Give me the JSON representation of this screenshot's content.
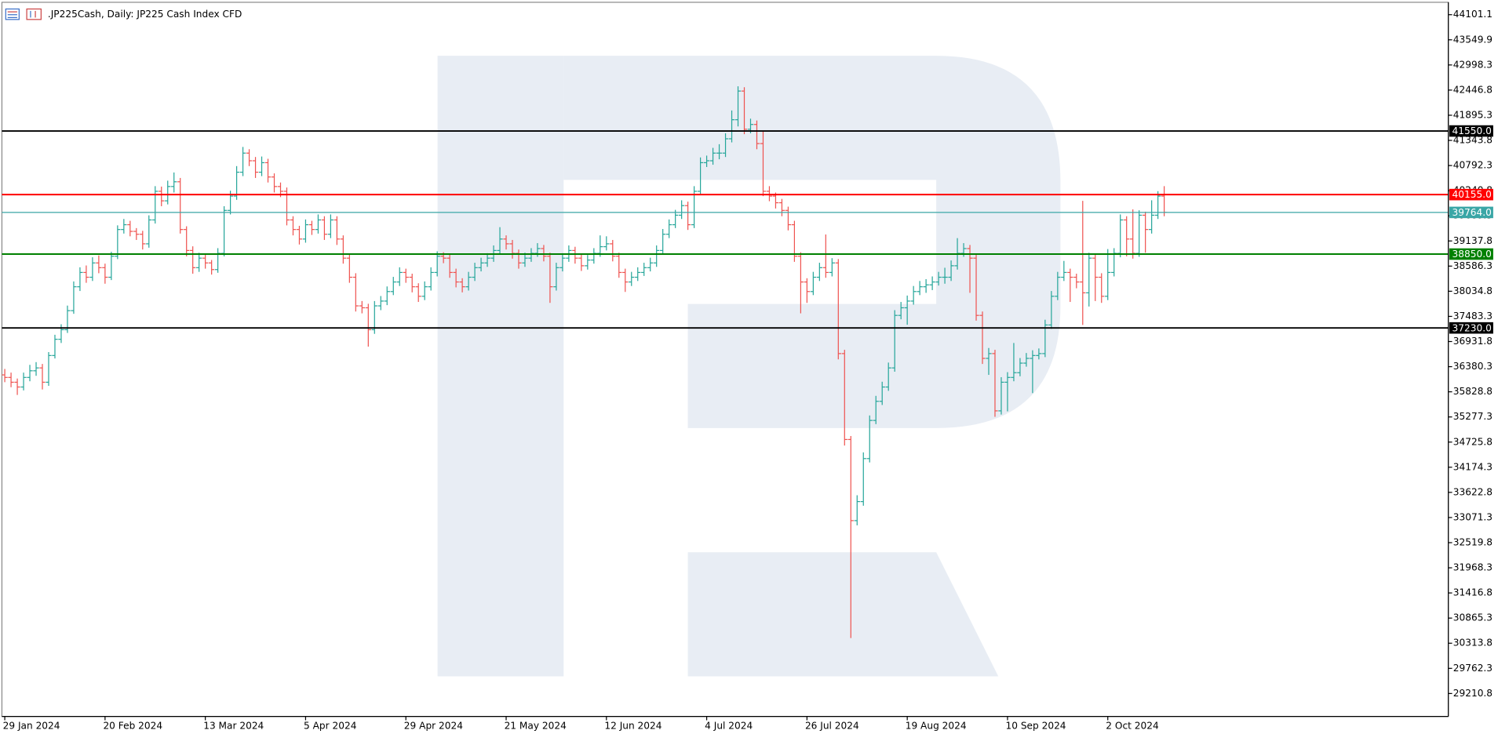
{
  "chart_data": {
    "type": "ohlc",
    "title": ".JP225Cash, Daily:  JP225 Cash Index CFD",
    "categories": [
      "29 Jan 2024",
      null,
      null,
      null,
      null,
      null,
      null,
      null,
      null,
      null,
      null,
      null,
      null,
      null,
      null,
      null,
      "20 Feb 2024",
      null,
      null,
      null,
      null,
      null,
      null,
      null,
      null,
      null,
      null,
      null,
      null,
      null,
      null,
      null,
      "13 Mar 2024",
      null,
      null,
      null,
      null,
      null,
      null,
      null,
      null,
      null,
      null,
      null,
      null,
      null,
      null,
      null,
      "5 Apr 2024",
      null,
      null,
      null,
      null,
      null,
      null,
      null,
      null,
      null,
      null,
      null,
      null,
      null,
      null,
      null,
      "29 Apr 2024",
      null,
      null,
      null,
      null,
      null,
      null,
      null,
      null,
      null,
      null,
      null,
      null,
      null,
      null,
      null,
      "21 May 2024",
      null,
      null,
      null,
      null,
      null,
      null,
      null,
      null,
      null,
      null,
      null,
      null,
      null,
      null,
      null,
      "12 Jun 2024",
      null,
      null,
      null,
      null,
      null,
      null,
      null,
      null,
      null,
      null,
      null,
      null,
      null,
      null,
      null,
      "4 Jul 2024",
      null,
      null,
      null,
      null,
      null,
      null,
      null,
      null,
      null,
      null,
      null,
      null,
      null,
      null,
      null,
      "26 Jul 2024",
      null,
      null,
      null,
      null,
      null,
      null,
      null,
      null,
      null,
      null,
      null,
      null,
      null,
      null,
      null,
      "19 Aug 2024",
      null,
      null,
      null,
      null,
      null,
      null,
      null,
      null,
      null,
      null,
      null,
      null,
      null,
      null,
      null,
      "10 Sep 2024",
      null,
      null,
      null,
      null,
      null,
      null,
      null,
      null,
      null,
      null,
      null,
      null,
      null,
      null,
      null,
      "2 Oct 2024",
      null,
      null,
      null,
      null,
      null,
      null,
      null,
      null,
      null
    ],
    "open": [
      36200,
      36144,
      36039,
      35934,
      36144,
      36290,
      36353,
      36039,
      36625,
      36981,
      37191,
      37609,
      38133,
      38447,
      38342,
      38656,
      38552,
      38342,
      38803,
      39389,
      39494,
      39348,
      39285,
      39075,
      39599,
      40227,
      40018,
      40332,
      40436,
      39389,
      38929,
      38552,
      38761,
      38656,
      38510,
      38866,
      39808,
      40122,
      40646,
      41065,
      40897,
      40646,
      40855,
      40541,
      40332,
      40227,
      39599,
      39389,
      39180,
      39494,
      39389,
      39599,
      39285,
      39599,
      39180,
      38761,
      38342,
      37714,
      37672,
      37191,
      37714,
      37819,
      38028,
      38238,
      38447,
      38342,
      38133,
      37924,
      38133,
      38447,
      38803,
      38761,
      38447,
      38238,
      38133,
      38342,
      38552,
      38656,
      38761,
      38929,
      39180,
      39075,
      38866,
      38656,
      38761,
      38866,
      38971,
      38803,
      38133,
      38552,
      38761,
      38929,
      38761,
      38594,
      38719,
      38866,
      39012,
      39075,
      38803,
      38447,
      38238,
      38342,
      38447,
      38552,
      38656,
      38929,
      39285,
      39494,
      39703,
      39913,
      39494,
      40227,
      40855,
      40897,
      41065,
      41065,
      41379,
      41797,
      42426,
      41588,
      41693,
      41274,
      40227,
      40122,
      39976,
      39808,
      39494,
      38803,
      38238,
      38028,
      38342,
      38552,
      38447,
      38656,
      36667,
      34783,
      33003,
      33421,
      34364,
      35201,
      35620,
      35934,
      36353,
      37505,
      37672,
      37819,
      38028,
      38133,
      38175,
      38238,
      38342,
      38342,
      38594,
      38866,
      38971,
      38761,
      37505,
      36562,
      36667,
      35411,
      36039,
      36144,
      36248,
      36458,
      36562,
      36625,
      36667,
      37295,
      37924,
      38342,
      38447,
      38342,
      38238,
      38000,
      38761,
      38342,
      37924,
      38447,
      38866,
      39599,
      39180,
      38866,
      39703,
      39389,
      39703,
      40122
    ],
    "high": [
      36330,
      36250,
      36120,
      36250,
      36420,
      36480,
      36440,
      36700,
      37080,
      37310,
      37720,
      38250,
      38560,
      38600,
      38780,
      38820,
      38640,
      38900,
      39480,
      39620,
      39580,
      39420,
      39360,
      39700,
      40340,
      40330,
      40460,
      40640,
      40520,
      39460,
      39020,
      38880,
      38850,
      38720,
      38980,
      39900,
      40240,
      40780,
      41200,
      41150,
      40980,
      40990,
      40940,
      40620,
      40420,
      40310,
      39680,
      39470,
      39610,
      39580,
      39720,
      39680,
      39720,
      39680,
      39260,
      38840,
      38430,
      37820,
      37760,
      37820,
      37930,
      38140,
      38350,
      38560,
      38530,
      38420,
      38210,
      38250,
      38560,
      38910,
      38890,
      38840,
      38530,
      38320,
      38460,
      38660,
      38770,
      38870,
      39040,
      39440,
      39260,
      39160,
      38950,
      38880,
      38980,
      39090,
      39050,
      38880,
      38660,
      38870,
      39040,
      39010,
      38840,
      38830,
      38980,
      39260,
      39240,
      39160,
      38880,
      38530,
      38460,
      38560,
      38660,
      38770,
      39040,
      39400,
      39610,
      39820,
      40030,
      40000,
      40340,
      40970,
      41010,
      41180,
      41260,
      41500,
      42000,
      42530,
      42510,
      41820,
      41780,
      41560,
      40340,
      40200,
      40060,
      39890,
      39580,
      38890,
      38320,
      38460,
      38660,
      39280,
      38760,
      38740,
      36750,
      34860,
      33560,
      34500,
      35310,
      35740,
      36050,
      36470,
      37620,
      37800,
      37940,
      38150,
      38260,
      38300,
      38360,
      38460,
      38550,
      38710,
      39200,
      39090,
      39050,
      38840,
      37590,
      36790,
      36750,
      36150,
      36260,
      36900,
      36570,
      36680,
      36740,
      36780,
      37410,
      38040,
      38460,
      38700,
      38530,
      38420,
      40018,
      38880,
      38840,
      38430,
      38960,
      38980,
      39720,
      39680,
      39830,
      39810,
      39780,
      40030,
      40230,
      40340
    ],
    "low": [
      36040,
      35930,
      35760,
      35860,
      36060,
      36180,
      35880,
      35960,
      36560,
      36900,
      37120,
      37540,
      38040,
      38220,
      38260,
      38430,
      38200,
      38280,
      38740,
      39300,
      39240,
      39160,
      38950,
      38990,
      39520,
      39900,
      39940,
      40200,
      39300,
      38800,
      38420,
      38460,
      38530,
      38400,
      38440,
      38800,
      39720,
      40040,
      40560,
      40780,
      40520,
      40560,
      40420,
      40200,
      40100,
      39480,
      39260,
      39060,
      39100,
      39270,
      39300,
      39160,
      39200,
      39050,
      38640,
      38220,
      37590,
      37550,
      36820,
      37100,
      37620,
      37730,
      37950,
      38150,
      38220,
      38010,
      37800,
      37840,
      38050,
      38360,
      38650,
      38330,
      38120,
      38010,
      38050,
      38260,
      38470,
      38570,
      38680,
      38850,
      38950,
      38750,
      38530,
      38570,
      38680,
      38790,
      38690,
      37780,
      38050,
      38470,
      38680,
      38640,
      38480,
      38510,
      38640,
      38790,
      38930,
      38690,
      38330,
      38020,
      38150,
      38260,
      38370,
      38470,
      38570,
      38850,
      39200,
      39420,
      39620,
      39380,
      39420,
      40150,
      40760,
      40810,
      40930,
      40980,
      41300,
      41650,
      41480,
      41500,
      41150,
      40120,
      40010,
      39850,
      39680,
      39370,
      38680,
      37550,
      37780,
      37950,
      38260,
      38330,
      38360,
      36540,
      34650,
      30427,
      32900,
      33330,
      34280,
      35120,
      35540,
      35850,
      36270,
      37420,
      37300,
      37740,
      37950,
      38000,
      38060,
      38160,
      38200,
      38260,
      38510,
      38790,
      38000,
      37390,
      36440,
      36200,
      35280,
      35330,
      35400,
      36060,
      36170,
      36380,
      35800,
      36540,
      36590,
      37210,
      37840,
      38260,
      37800,
      38100,
      37295,
      37700,
      37820,
      37780,
      37840,
      38360,
      38780,
      38800,
      38750,
      38790,
      38880,
      39300,
      39620,
      39680
    ],
    "close": [
      36144,
      36039,
      35934,
      36144,
      36290,
      36353,
      36039,
      36625,
      36981,
      37191,
      37609,
      38133,
      38447,
      38342,
      38656,
      38552,
      38342,
      38803,
      39389,
      39494,
      39348,
      39285,
      39075,
      39599,
      40227,
      40018,
      40332,
      40436,
      39389,
      38929,
      38552,
      38761,
      38656,
      38510,
      38866,
      39808,
      40122,
      40646,
      41065,
      40897,
      40646,
      40855,
      40541,
      40332,
      40227,
      39599,
      39389,
      39180,
      39494,
      39389,
      39599,
      39285,
      39599,
      39180,
      38761,
      38342,
      37714,
      37672,
      37191,
      37714,
      37819,
      38028,
      38238,
      38447,
      38342,
      38133,
      37924,
      38133,
      38447,
      38803,
      38761,
      38447,
      38238,
      38133,
      38342,
      38552,
      38656,
      38761,
      38929,
      39180,
      39075,
      38866,
      38656,
      38761,
      38866,
      38971,
      38803,
      38133,
      38552,
      38761,
      38929,
      38761,
      38594,
      38719,
      38866,
      39012,
      39075,
      38803,
      38447,
      38238,
      38342,
      38447,
      38552,
      38656,
      38929,
      39285,
      39494,
      39703,
      39913,
      39494,
      40227,
      40855,
      40897,
      41065,
      41065,
      41379,
      41797,
      42426,
      41588,
      41693,
      41274,
      40227,
      40122,
      39976,
      39808,
      39494,
      38803,
      38238,
      38028,
      38342,
      38552,
      38447,
      38656,
      36667,
      34783,
      33003,
      33421,
      34364,
      35201,
      35620,
      35934,
      36353,
      37505,
      37672,
      37819,
      38028,
      38133,
      38175,
      38238,
      38342,
      38342,
      38594,
      38866,
      38971,
      38761,
      37505,
      36562,
      36667,
      35411,
      36039,
      36144,
      36248,
      36458,
      36562,
      36625,
      36667,
      37295,
      37924,
      38342,
      38447,
      38342,
      38238,
      38000,
      38761,
      38342,
      37924,
      38447,
      38866,
      39599,
      39180,
      38866,
      39703,
      39389,
      39703,
      40122,
      39764
    ],
    "up_color": "#26a69a",
    "down_color": "#ef5350",
    "ylim": [
      28708,
      44373
    ],
    "yticks": [
      44101.1,
      43549.9,
      42998.3,
      42446.8,
      41895.3,
      41343.8,
      40792.3,
      40240.8,
      39689.3,
      39137.8,
      38586.3,
      38034.8,
      37483.3,
      36931.8,
      36380.3,
      35828.8,
      35277.3,
      34725.8,
      34174.3,
      33622.8,
      33071.3,
      32519.8,
      31968.3,
      31416.8,
      30865.3,
      30313.8,
      29762.3,
      29210.8
    ],
    "levels": [
      {
        "value": 41550,
        "label": "41550.0",
        "color": "#000000"
      },
      {
        "value": 40155,
        "label": "40155.0",
        "color": "#ff0000"
      },
      {
        "value": 39764,
        "label": "39764.0",
        "color": "#3aa6a6"
      },
      {
        "value": 38850,
        "label": "38850.0",
        "color": "#008000"
      },
      {
        "value": 37230,
        "label": "37230.0",
        "color": "#000000"
      }
    ]
  }
}
